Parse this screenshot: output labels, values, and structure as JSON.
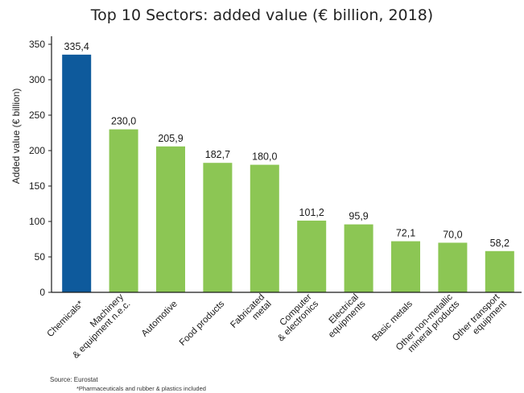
{
  "chart_data": {
    "type": "bar",
    "title": "Top 10 Sectors: added value (€ billion, 2018)",
    "ylabel": "Added value (€ billion)",
    "xlabel": "",
    "ylim": [
      0,
      350
    ],
    "yticks": [
      "0",
      "50",
      "100",
      "150",
      "200",
      "250",
      "300",
      "350"
    ],
    "grid": false,
    "categories": [
      "Chemicals*",
      "Machinery & equipment n.e.c.",
      "Automotive",
      "Food products",
      "Fabricated metal",
      "Computer & electronics",
      "Electrical equipments",
      "Basic metals",
      "Other non-metallic mineral products",
      "Other transport equipment"
    ],
    "category_lines": [
      [
        "Chemicals*"
      ],
      [
        "Machinery",
        "& equipment n.e.c."
      ],
      [
        "Automotive"
      ],
      [
        "Food products"
      ],
      [
        "Fabricated",
        "metal"
      ],
      [
        "Computer",
        "& electronics"
      ],
      [
        "Electrical",
        "equipments"
      ],
      [
        "Basic metals"
      ],
      [
        "Other non-metallic",
        "mineral products"
      ],
      [
        "Other transport",
        "equipment"
      ]
    ],
    "values": [
      335.4,
      230.0,
      205.9,
      182.7,
      180.0,
      101.2,
      95.9,
      72.1,
      70.0,
      58.2
    ],
    "value_labels": [
      "335,4",
      "230,0",
      "205,9",
      "182,7",
      "180,0",
      "101,2",
      "95,9",
      "72,1",
      "70,0",
      "58,2"
    ],
    "colors": {
      "highlight": "#0e5a9c",
      "default": "#8cc654",
      "axis": "#1a1a1a"
    },
    "highlight_index": 0
  },
  "notes": {
    "source": "Source: Eurostat",
    "asterisk": "*Pharmaceuticals and rubber & plastics included"
  }
}
